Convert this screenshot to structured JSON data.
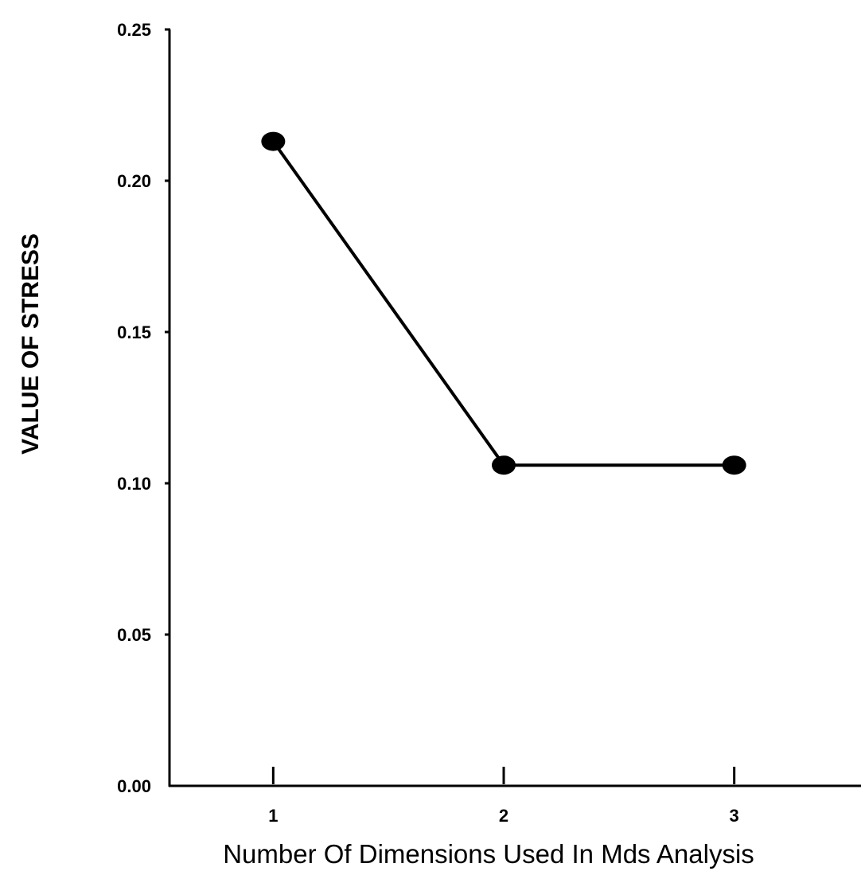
{
  "chart_data": {
    "type": "line",
    "title": "",
    "xlabel": "Number Of Dimensions Used In Mds Analysis",
    "ylabel": "VALUE OF STRESS",
    "x": [
      1,
      2,
      3
    ],
    "x_tick_labels": [
      "1",
      "2",
      "3"
    ],
    "y_ticks": [
      0.0,
      0.05,
      0.1,
      0.15,
      0.2,
      0.25
    ],
    "y_tick_labels": [
      "0.00",
      "0.05",
      "0.10",
      "0.15",
      "0.20",
      "0.25"
    ],
    "ylim": [
      0,
      0.25
    ],
    "xlim": [
      0.55,
      3.55
    ],
    "grid": false,
    "legend": "none",
    "series": [
      {
        "values": [
          0.213,
          0.106,
          0.106
        ]
      }
    ],
    "colors": {
      "line": "#000000",
      "marker": "#000000",
      "axis": "#000000"
    }
  }
}
